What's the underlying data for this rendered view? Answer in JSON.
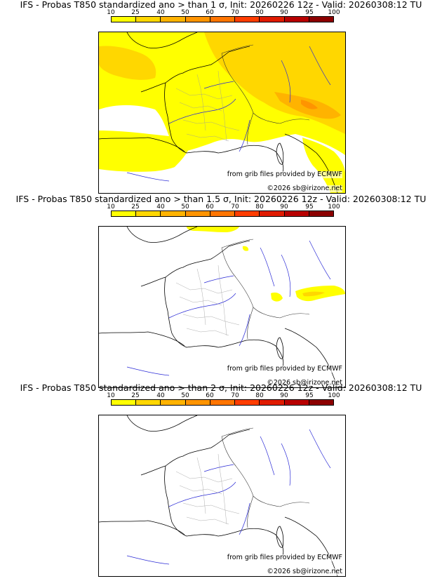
{
  "colorbar": {
    "ticks": [
      "10",
      "25",
      "40",
      "50",
      "60",
      "70",
      "80",
      "90",
      "95",
      "100"
    ],
    "colors": [
      "#ffff00",
      "#ffd700",
      "#ffb300",
      "#ff9400",
      "#ff7500",
      "#ff3d00",
      "#e01b00",
      "#b80000",
      "#8c0000"
    ]
  },
  "panels": [
    {
      "title": "IFS - Probas T850  standardized ano > than 1 σ, Init: 20260226 12z - Valid: 20260308:12 TU",
      "credit_source": "from grib files provided by ECMWF",
      "credit_copyright": "©2026 sb@irizone.net"
    },
    {
      "title": "IFS - Probas T850  standardized ano > than 1.5 σ, Init: 20260226 12z - Valid: 20260308:12 TU",
      "credit_source": "from grib files provided by ECMWF",
      "credit_copyright": "©2026 sb@irizone.net"
    },
    {
      "title": "IFS - Probas T850  standardized ano > than 2 σ, Init: 20260226 12z - Valid: 20260308:12 TU",
      "credit_source": "from grib files provided by ECMWF",
      "credit_copyright": "©2026 sb@irizone.net"
    }
  ]
}
